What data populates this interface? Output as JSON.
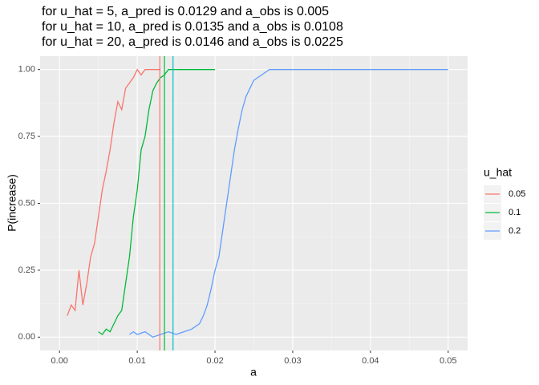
{
  "chart_data": {
    "type": "line",
    "title_lines": [
      "for u_hat = 5,   a_pred is 0.0129 and a_obs is 0.005",
      "for u_hat = 10, a_pred is 0.0135 and a_obs is 0.0108",
      "for u_hat = 20, a_pred is 0.0146 and a_obs is 0.0225"
    ],
    "x_label": "a",
    "y_label": "P(increase)",
    "legend_title": "u_hat",
    "xlim": [
      -0.0025,
      0.0525
    ],
    "ylim": [
      -0.05,
      1.05
    ],
    "xticks": [
      {
        "value": 0,
        "label": "0.00"
      },
      {
        "value": 0.01,
        "label": "0.01"
      },
      {
        "value": 0.02,
        "label": "0.02"
      },
      {
        "value": 0.03,
        "label": "0.03"
      },
      {
        "value": 0.04,
        "label": "0.04"
      },
      {
        "value": 0.05,
        "label": "0.05"
      }
    ],
    "yticks": [
      {
        "value": 0,
        "label": "0.00"
      },
      {
        "value": 0.25,
        "label": "0.25"
      },
      {
        "value": 0.5,
        "label": "0.50"
      },
      {
        "value": 0.75,
        "label": "0.75"
      },
      {
        "value": 1,
        "label": "1.00"
      }
    ],
    "grid": true,
    "legend": "right",
    "series": [
      {
        "name": "0.05",
        "color": "#F8766D",
        "x": [
          0.001,
          0.0015,
          0.002,
          0.0025,
          0.003,
          0.0035,
          0.004,
          0.0045,
          0.005,
          0.0055,
          0.006,
          0.0065,
          0.007,
          0.0075,
          0.008,
          0.0085,
          0.009,
          0.0095,
          0.01,
          0.0105,
          0.011,
          0.0115,
          0.012,
          0.0125,
          0.013
        ],
        "values": [
          0.08,
          0.12,
          0.1,
          0.25,
          0.12,
          0.2,
          0.3,
          0.35,
          0.45,
          0.55,
          0.62,
          0.7,
          0.8,
          0.88,
          0.85,
          0.93,
          0.95,
          0.97,
          1,
          0.98,
          1,
          1,
          1,
          1,
          1
        ]
      },
      {
        "name": "0.1",
        "color": "#00BA38",
        "x": [
          0.005,
          0.0055,
          0.006,
          0.0065,
          0.007,
          0.0075,
          0.008,
          0.0085,
          0.009,
          0.0095,
          0.01,
          0.0105,
          0.011,
          0.0115,
          0.012,
          0.0125,
          0.013,
          0.0135,
          0.014,
          0.0145,
          0.015,
          0.016,
          0.017,
          0.018,
          0.019,
          0.02
        ],
        "values": [
          0.02,
          0.01,
          0.03,
          0.02,
          0.05,
          0.08,
          0.1,
          0.2,
          0.3,
          0.45,
          0.55,
          0.7,
          0.75,
          0.85,
          0.92,
          0.95,
          0.97,
          0.98,
          1,
          1,
          1,
          1,
          1,
          1,
          1,
          1
        ]
      },
      {
        "name": "0.2",
        "color": "#619CFF",
        "x": [
          0.009,
          0.0095,
          0.01,
          0.011,
          0.012,
          0.013,
          0.014,
          0.015,
          0.016,
          0.017,
          0.018,
          0.0185,
          0.019,
          0.0195,
          0.02,
          0.0205,
          0.021,
          0.0215,
          0.022,
          0.0225,
          0.023,
          0.0235,
          0.024,
          0.0245,
          0.025,
          0.026,
          0.027,
          0.028,
          0.03,
          0.035,
          0.04,
          0.045,
          0.05
        ],
        "values": [
          0.01,
          0.02,
          0.01,
          0.02,
          0,
          0.01,
          0.02,
          0.01,
          0.02,
          0.03,
          0.05,
          0.08,
          0.12,
          0.18,
          0.25,
          0.3,
          0.4,
          0.5,
          0.6,
          0.7,
          0.78,
          0.85,
          0.9,
          0.93,
          0.96,
          0.98,
          1,
          1,
          1,
          1,
          1,
          1,
          1
        ]
      }
    ],
    "vlines": [
      {
        "value": 0.0129,
        "color": "#F8766D"
      },
      {
        "value": 0.0135,
        "color": "#00BA38"
      },
      {
        "value": 0.0146,
        "color": "#00BFC4"
      }
    ]
  }
}
